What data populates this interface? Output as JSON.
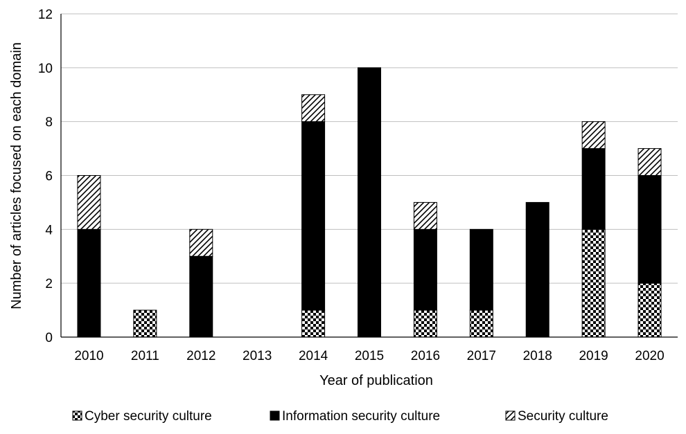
{
  "chart_data": {
    "type": "bar",
    "stacked": true,
    "title": "",
    "xlabel": "Year of publication",
    "ylabel": "Number of articles focused on each domain",
    "ylim": [
      0,
      12
    ],
    "yticks": [
      0,
      2,
      4,
      6,
      8,
      10,
      12
    ],
    "grid": true,
    "legend_position": "bottom",
    "categories": [
      "2010",
      "2011",
      "2012",
      "2013",
      "2014",
      "2015",
      "2016",
      "2017",
      "2018",
      "2019",
      "2020"
    ],
    "series": [
      {
        "name": "Cyber security culture",
        "pattern": "checkerboard",
        "values": [
          0,
          1,
          0,
          0,
          1,
          0,
          1,
          1,
          0,
          4,
          2
        ]
      },
      {
        "name": "Information security culture",
        "pattern": "solid",
        "values": [
          4,
          0,
          3,
          0,
          7,
          10,
          3,
          3,
          5,
          3,
          4
        ]
      },
      {
        "name": "Security culture",
        "pattern": "diagonal-hatch",
        "values": [
          2,
          0,
          1,
          0,
          1,
          0,
          1,
          0,
          0,
          1,
          1
        ]
      }
    ],
    "colors": {
      "fill": "#000000",
      "background": "#ffffff",
      "grid": "#bfbfbf"
    }
  }
}
